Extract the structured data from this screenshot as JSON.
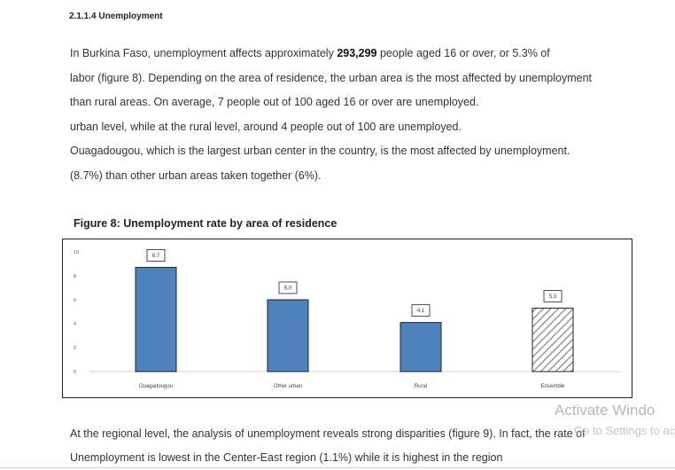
{
  "section": {
    "title": "2.1.1.4 Unemployment"
  },
  "intro": {
    "line1_prefix": "In Burkina Faso, unemployment affects approximately ",
    "line1_bold": "293,299",
    "line1_suffix": " people aged 16 or over, or 5.3% of",
    "line2": "labor (figure 8). Depending on the area of residence, the urban area is the most affected by unemployment",
    "line3": "than rural areas. On average, 7 people out of 100 aged 16 or over are unemployed.",
    "line4": "urban level, while at the rural level, around 4 people out of 100 are unemployed.",
    "line5": "Ouagadougou, which is the largest urban center in the country, is the most affected by unemployment.",
    "line6": "(8.7%) than other urban areas taken together (6%)."
  },
  "figure": {
    "title": "Figure 8: Unemployment rate by area of residence"
  },
  "chart_data": {
    "type": "bar",
    "title": "Figure 8: Unemployment rate by area of residence",
    "categories": [
      "Ouagadougou",
      "Other urban",
      "Rural",
      "Ensemble"
    ],
    "values": [
      8.7,
      6.0,
      4.1,
      5.3
    ],
    "labels": [
      "8,7",
      "6,0",
      "4,1",
      "5,3"
    ],
    "patterns": [
      "solid",
      "solid",
      "solid",
      "hatched"
    ],
    "yticks": [
      "0",
      "2",
      "4",
      "6",
      "8",
      "10"
    ],
    "ylim": [
      0,
      10
    ],
    "xlabel": "",
    "ylabel": "",
    "bar_color": "#4f81bd",
    "hatch_color": "#888888"
  },
  "closing": {
    "line1_prefix": "At the regional level, the analysis of unemployment reveals strong disparities (figure 9). In fact, the rate of",
    "line2": "Unemployment is lowest in the Center-East region (1.1%) while it is highest in the region"
  },
  "watermark": {
    "line1": "Activate Windo",
    "line2": "Go to Settings to act"
  }
}
